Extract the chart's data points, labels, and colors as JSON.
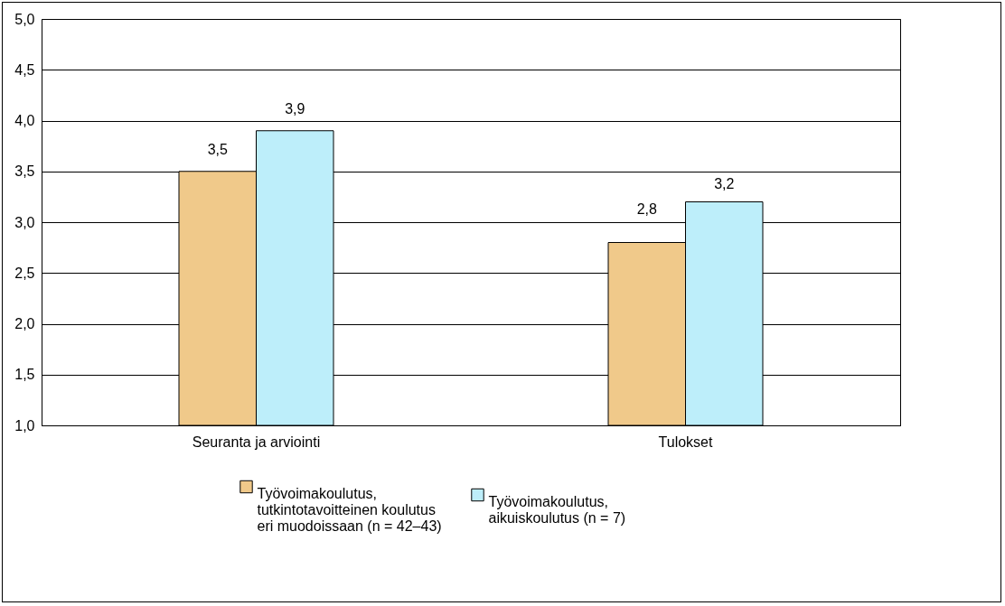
{
  "chart_data": {
    "type": "bar",
    "categories": [
      "Seuranta ja arviointi",
      "Tulokset"
    ],
    "series": [
      {
        "name": "Työvoimakoulutus, tutkintotavoitteinen koulutus eri muodoissaan (n = 42–43)",
        "color": "#f0c98a",
        "values": [
          3.5,
          2.8
        ],
        "value_labels": [
          "3,5",
          "2,8"
        ]
      },
      {
        "name": "Työvoimakoulutus, aikuiskoulutus (n = 7)",
        "color": "#bdeefa",
        "values": [
          3.9,
          3.2
        ],
        "value_labels": [
          "3,9",
          "3,2"
        ]
      }
    ],
    "ylim": [
      1,
      5
    ],
    "yticks": [
      {
        "value": 1,
        "label": "1,0"
      },
      {
        "value": 1.5,
        "label": "1,5"
      },
      {
        "value": 2,
        "label": "2,0"
      },
      {
        "value": 2.5,
        "label": "2,5"
      },
      {
        "value": 3,
        "label": "3,0"
      },
      {
        "value": 3.5,
        "label": "3,5"
      },
      {
        "value": 4,
        "label": "4,0"
      },
      {
        "value": 4.5,
        "label": "4,5"
      },
      {
        "value": 5,
        "label": "5,0"
      }
    ],
    "grid": "y",
    "legend": "bottom"
  }
}
